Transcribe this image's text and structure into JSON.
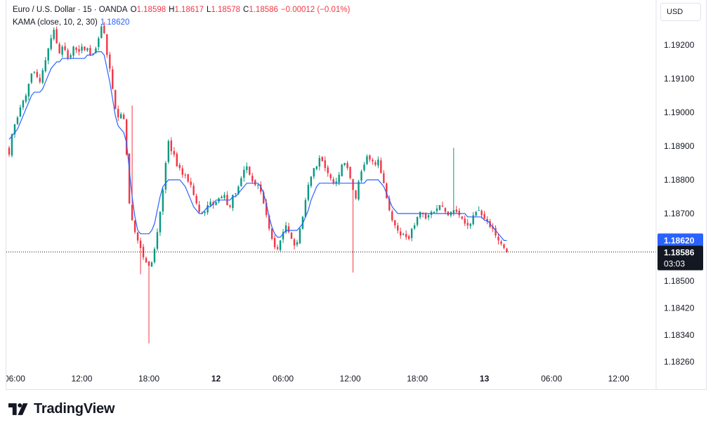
{
  "legend": {
    "symbol": "Euro / U.S. Dollar · 15 · OANDA",
    "o_label": "O",
    "o_value": "1.18598",
    "h_label": "H",
    "h_value": "1.18617",
    "l_label": "L",
    "l_value": "1.18578",
    "c_label": "C",
    "c_value": "1.18586",
    "change": "−0.00012 (−0.01%)",
    "indicator_label": "KAMA (close, 10, 2, 30)",
    "indicator_value": "1.18620"
  },
  "currency_button": "USD",
  "price_labels": {
    "kama_value": "1.18620",
    "last_price": "1.18586",
    "countdown": "03:03"
  },
  "brand": {
    "name": "TradingView"
  },
  "colors": {
    "up": "#089981",
    "down": "#f23645",
    "kama": "#2962ff",
    "last_price_bg": "#131722",
    "kama_label_bg": "#2962ff"
  },
  "chart_data": {
    "type": "candlestick",
    "instrument": "EURUSD",
    "timeframe": "15",
    "y_ticks": [
      "1.19200",
      "1.19100",
      "1.19000",
      "1.18900",
      "1.18800",
      "1.18700",
      "1.18620",
      "1.18500",
      "1.18420",
      "1.18340",
      "1.18260"
    ],
    "ylim": [
      1.1823,
      1.1936
    ],
    "x_ticks": [
      {
        "label": "06:00",
        "bold": false,
        "bar": 2
      },
      {
        "label": "12:00",
        "bold": false,
        "bar": 26
      },
      {
        "label": "18:00",
        "bold": false,
        "bar": 50
      },
      {
        "label": "12",
        "bold": true,
        "bar": 74
      },
      {
        "label": "06:00",
        "bold": false,
        "bar": 98
      },
      {
        "label": "12:00",
        "bold": false,
        "bar": 122
      },
      {
        "label": "18:00",
        "bold": false,
        "bar": 146
      },
      {
        "label": "13",
        "bold": true,
        "bar": 170
      },
      {
        "label": "06:00",
        "bold": false,
        "bar": 194
      },
      {
        "label": "12:00",
        "bold": false,
        "bar": 218
      }
    ],
    "last_price": 1.18586,
    "kama_last": 1.1862,
    "close": [
      1.18875,
      1.18935,
      1.18965,
      1.18985,
      1.19015,
      1.19035,
      1.1905,
      1.19085,
      1.19115,
      1.1912,
      1.19105,
      1.1909,
      1.19125,
      1.19155,
      1.1919,
      1.1922,
      1.19245,
      1.19205,
      1.19175,
      1.19195,
      1.19185,
      1.1916,
      1.1917,
      1.19195,
      1.19185,
      1.1918,
      1.19195,
      1.19185,
      1.1919,
      1.1917,
      1.19175,
      1.1919,
      1.1922,
      1.19255,
      1.19235,
      1.1917,
      1.1913,
      1.1907,
      1.1901,
      1.18985,
      1.18995,
      1.1898,
      1.18875,
      1.1873,
      1.1868,
      1.18645,
      1.1862,
      1.18598,
      1.1857,
      1.18555,
      1.18545,
      1.18555,
      1.18595,
      1.18645,
      1.18705,
      1.1877,
      1.1885,
      1.18915,
      1.18885,
      1.18875,
      1.1884,
      1.18835,
      1.18815,
      1.18815,
      1.18795,
      1.18785,
      1.18755,
      1.1873,
      1.18705,
      1.187,
      1.18705,
      1.18725,
      1.18735,
      1.18725,
      1.18735,
      1.18745,
      1.1875,
      1.18755,
      1.18725,
      1.1872,
      1.18755,
      1.1876,
      1.1878,
      1.18805,
      1.1883,
      1.1884,
      1.18815,
      1.18795,
      1.18785,
      1.18785,
      1.18765,
      1.1873,
      1.18695,
      1.18655,
      1.18625,
      1.186,
      1.18595,
      1.1862,
      1.18645,
      1.18665,
      1.18645,
      1.18625,
      1.18605,
      1.18615,
      1.18655,
      1.1869,
      1.1874,
      1.18785,
      1.1881,
      1.18835,
      1.1884,
      1.18865,
      1.18855,
      1.18835,
      1.1882,
      1.18805,
      1.1879,
      1.18795,
      1.18815,
      1.18845,
      1.1885,
      1.18835,
      1.18805,
      1.1877,
      1.18745,
      1.18795,
      1.18825,
      1.18845,
      1.1887,
      1.1886,
      1.18855,
      1.18845,
      1.1886,
      1.1882,
      1.1879,
      1.18745,
      1.1871,
      1.1868,
      1.18665,
      1.1865,
      1.18635,
      1.1864,
      1.1863,
      1.18625,
      1.18655,
      1.18665,
      1.1869,
      1.18705,
      1.187,
      1.18685,
      1.18695,
      1.18705,
      1.18705,
      1.18715,
      1.18725,
      1.1872,
      1.18705,
      1.18695,
      1.18705,
      1.1871,
      1.18705,
      1.18695,
      1.18685,
      1.1867,
      1.18665,
      1.1867,
      1.18695,
      1.18705,
      1.1871,
      1.18695,
      1.18685,
      1.18675,
      1.1866,
      1.18655,
      1.18635,
      1.1862,
      1.1861,
      1.18598,
      1.18586
    ],
    "kama": [
      1.1892,
      1.1893,
      1.1894,
      1.1895,
      1.1897,
      1.1899,
      1.1901,
      1.1903,
      1.1905,
      1.1906,
      1.1906,
      1.1906,
      1.1907,
      1.1909,
      1.1911,
      1.1913,
      1.1914,
      1.1915,
      1.1915,
      1.1916,
      1.1916,
      1.1916,
      1.1916,
      1.1916,
      1.1916,
      1.1916,
      1.1916,
      1.1916,
      1.1917,
      1.1917,
      1.1917,
      1.1918,
      1.1918,
      1.1918,
      1.1917,
      1.1913,
      1.1909,
      1.1904,
      1.1899,
      1.1896,
      1.1895,
      1.1894,
      1.1891,
      1.1883,
      1.1875,
      1.1869,
      1.1865,
      1.1864,
      1.1864,
      1.1864,
      1.1864,
      1.1865,
      1.1867,
      1.1871,
      1.1875,
      1.1878,
      1.1879,
      1.188,
      1.188,
      1.188,
      1.188,
      1.188,
      1.1879,
      1.1878,
      1.1876,
      1.1874,
      1.1872,
      1.1871,
      1.187,
      1.187,
      1.1871,
      1.1872,
      1.1872,
      1.1873,
      1.1874,
      1.1874,
      1.1874,
      1.1874,
      1.1874,
      1.1874,
      1.1875,
      1.1875,
      1.1876,
      1.1877,
      1.1878,
      1.1879,
      1.1879,
      1.1879,
      1.1879,
      1.1879,
      1.1878,
      1.1876,
      1.1873,
      1.1869,
      1.1866,
      1.1864,
      1.1863,
      1.1863,
      1.1864,
      1.1865,
      1.1865,
      1.1865,
      1.1865,
      1.1865,
      1.1866,
      1.1867,
      1.1869,
      1.1871,
      1.1874,
      1.1876,
      1.1878,
      1.1879,
      1.1879,
      1.1879,
      1.1879,
      1.1879,
      1.1879,
      1.1879,
      1.1879,
      1.1879,
      1.1879,
      1.1879,
      1.1879,
      1.1879,
      1.1879,
      1.1879,
      1.1879,
      1.1879,
      1.188,
      1.188,
      1.188,
      1.188,
      1.188,
      1.1879,
      1.1878,
      1.1876,
      1.1874,
      1.1872,
      1.1871,
      1.187,
      1.187,
      1.187,
      1.187,
      1.187,
      1.187,
      1.187,
      1.187,
      1.187,
      1.187,
      1.187,
      1.187,
      1.187,
      1.187,
      1.187,
      1.187,
      1.187,
      1.187,
      1.187,
      1.187,
      1.187,
      1.187,
      1.187,
      1.187,
      1.187,
      1.1869,
      1.1869,
      1.1869,
      1.1869,
      1.1869,
      1.1869,
      1.1868,
      1.1868,
      1.1867,
      1.1866,
      1.1865,
      1.1864,
      1.1863,
      1.1862,
      1.1862
    ]
  }
}
